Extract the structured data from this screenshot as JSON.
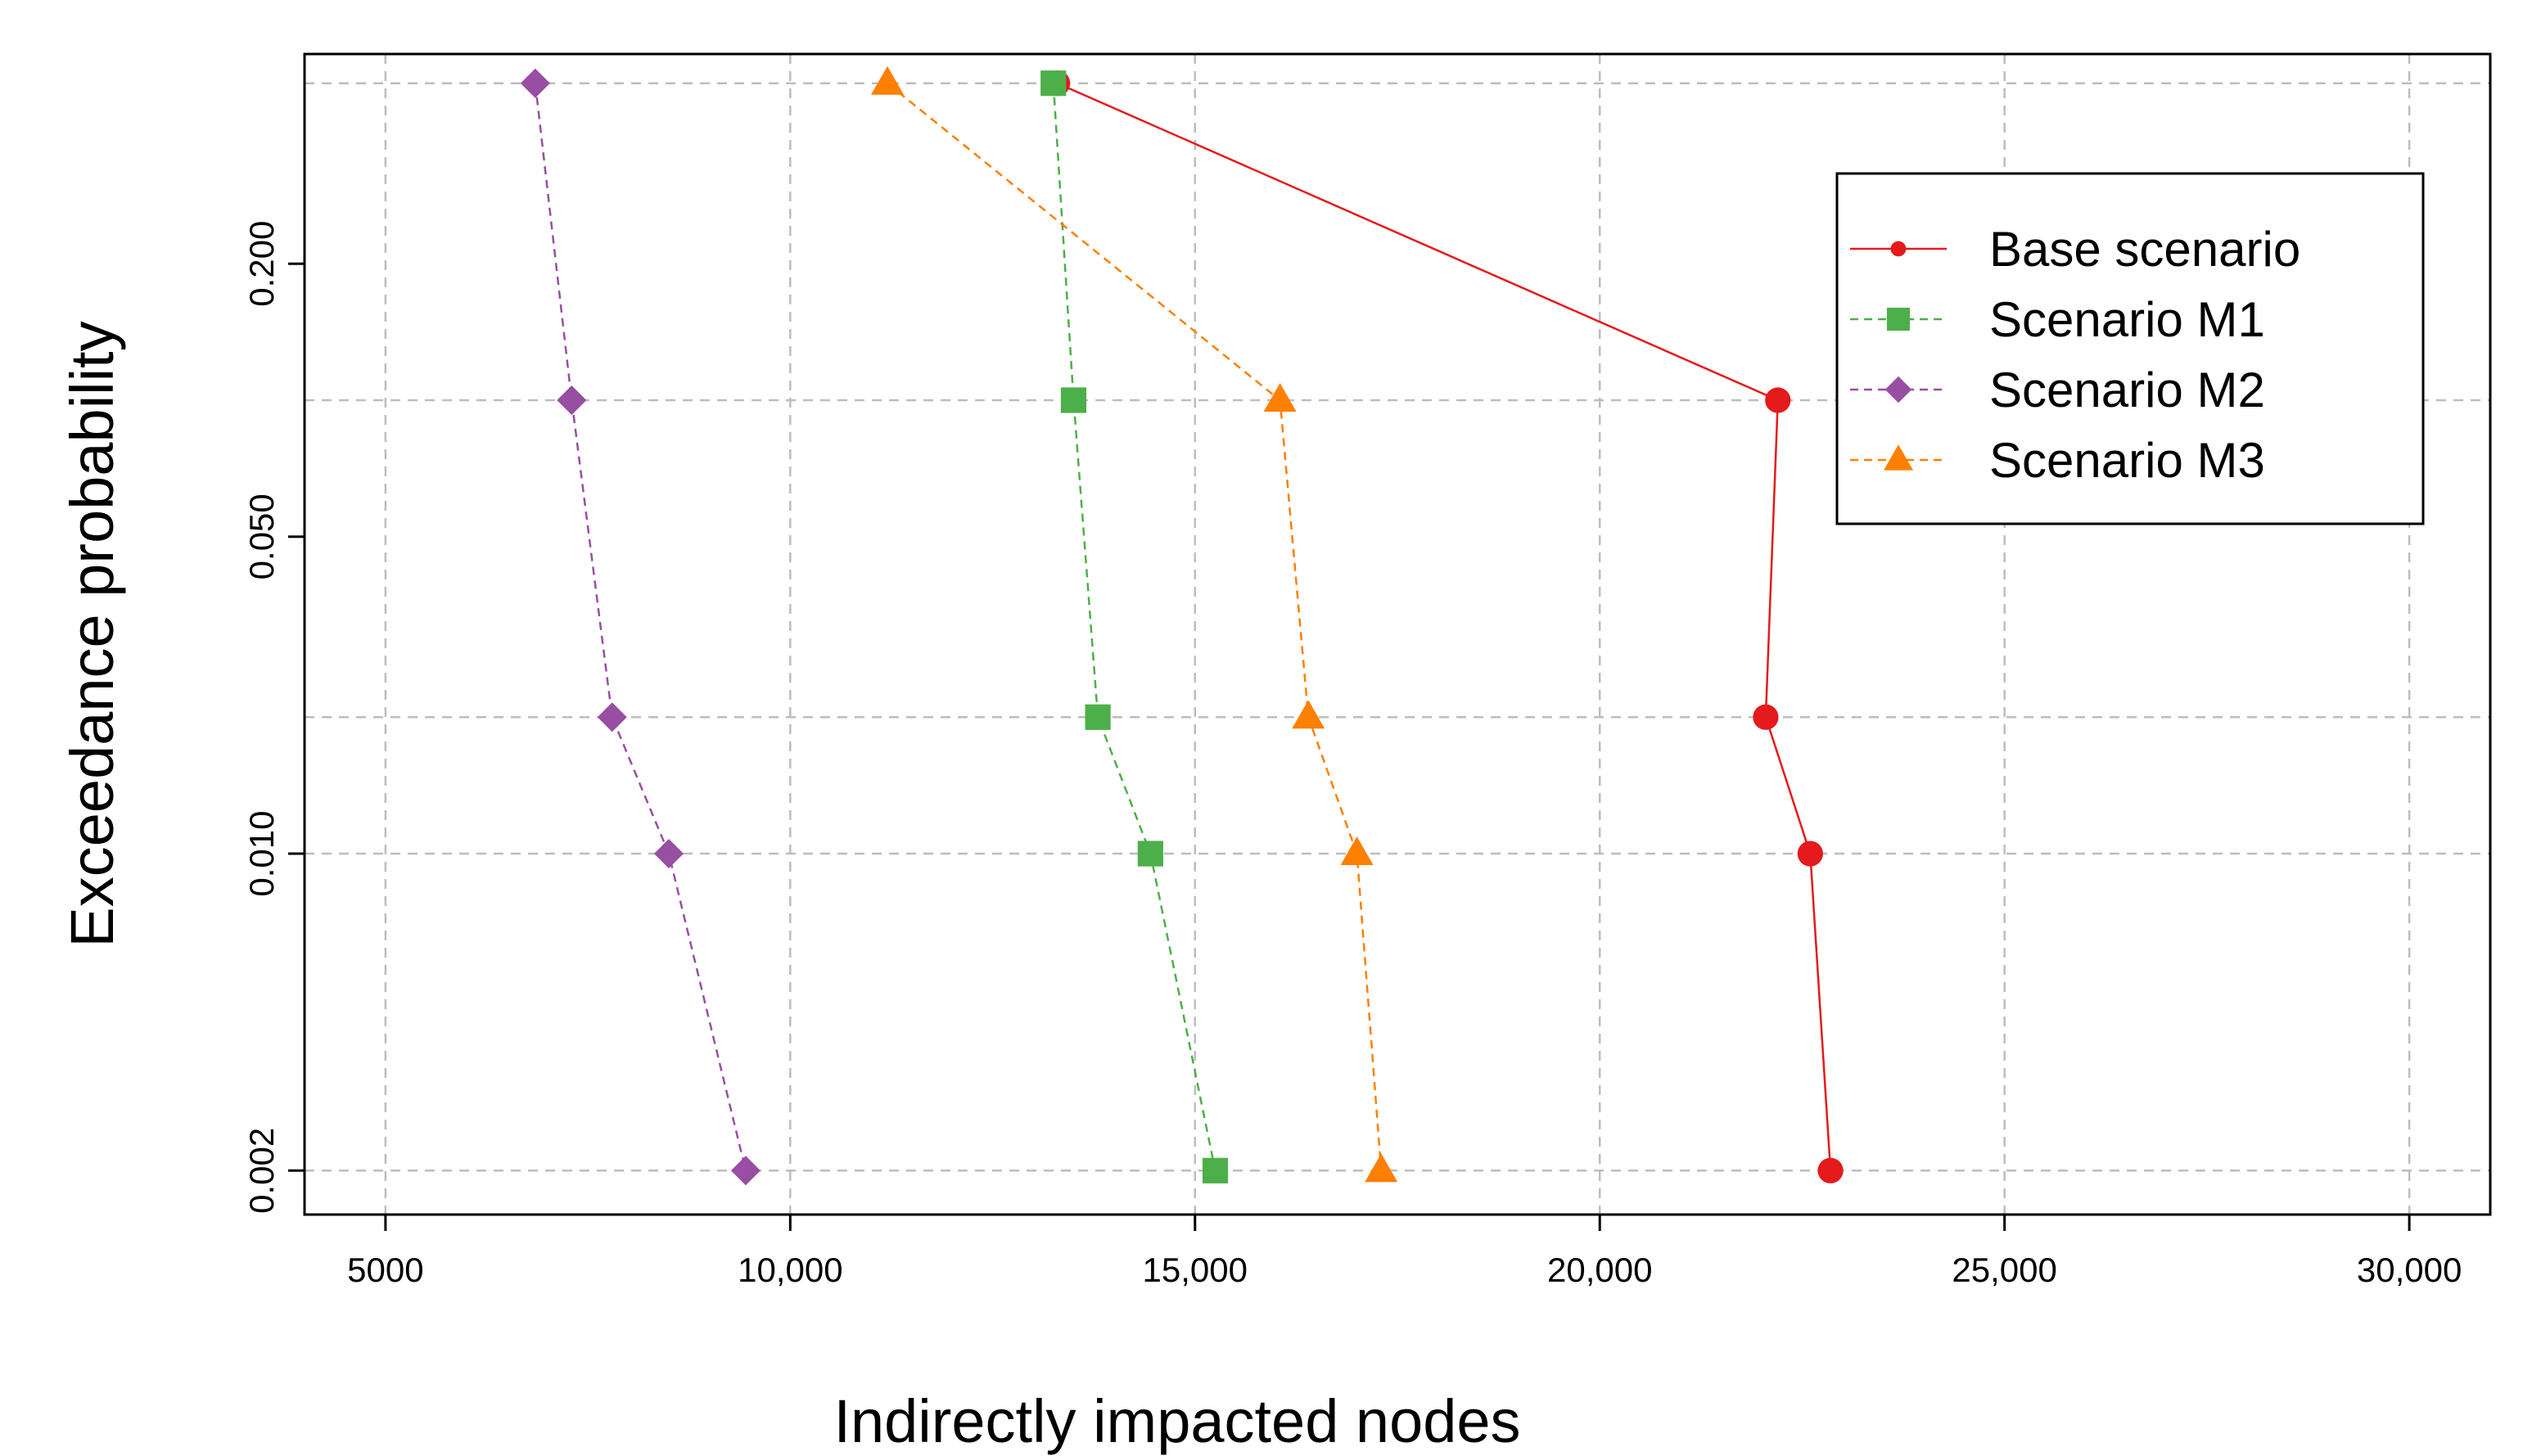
{
  "chart_data": {
    "type": "line",
    "title": "",
    "xlabel": "Indirectly impacted nodes",
    "ylabel": "Exceedance probability",
    "x_ticks": [
      5000,
      10000,
      15000,
      20000,
      25000,
      30000
    ],
    "x_tick_labels": [
      "5000",
      "10,000",
      "15,000",
      "20,000",
      "25,000",
      "30,000"
    ],
    "y_ticks": [
      0.2,
      0.05,
      0.01,
      0.002
    ],
    "y_tick_labels": [
      "0.200",
      "0.050",
      "0.010",
      "0.002"
    ],
    "y_points": [
      0.5,
      0.1,
      0.02,
      0.01,
      0.002
    ],
    "y_scale": "log",
    "xlim": [
      4000,
      31000
    ],
    "ylim": [
      0.0016,
      0.58
    ],
    "grid": true,
    "legend_position": "top-right",
    "series": [
      {
        "name": "Base scenario",
        "color": "#e41a1c",
        "line": "solid",
        "marker": "circle",
        "x": [
          13300,
          22200,
          22050,
          22600,
          22850
        ],
        "y": [
          0.5,
          0.1,
          0.02,
          0.01,
          0.002
        ]
      },
      {
        "name": "Scenario M1",
        "color": "#4daf4a",
        "line": "dashed",
        "marker": "square",
        "x": [
          13250,
          13500,
          13800,
          14450,
          15250
        ],
        "y": [
          0.5,
          0.1,
          0.02,
          0.01,
          0.002
        ]
      },
      {
        "name": "Scenario M2",
        "color": "#984ea3",
        "line": "dashed",
        "marker": "diamond",
        "x": [
          6850,
          7300,
          7800,
          8500,
          9450
        ],
        "y": [
          0.5,
          0.1,
          0.02,
          0.01,
          0.002
        ]
      },
      {
        "name": "Scenario M3",
        "color": "#ff7f00",
        "line": "dashed",
        "marker": "triangle",
        "x": [
          11200,
          16050,
          16400,
          17000,
          17300
        ],
        "y": [
          0.5,
          0.1,
          0.02,
          0.01,
          0.002
        ]
      }
    ]
  }
}
